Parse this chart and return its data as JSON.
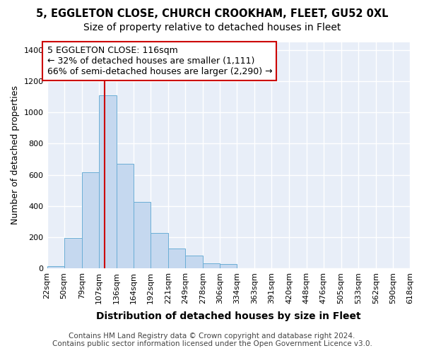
{
  "title1": "5, EGGLETON CLOSE, CHURCH CROOKHAM, FLEET, GU52 0XL",
  "title2": "Size of property relative to detached houses in Fleet",
  "xlabel": "Distribution of detached houses by size in Fleet",
  "ylabel": "Number of detached properties",
  "bar_edges": [
    22,
    50,
    79,
    107,
    136,
    164,
    192,
    221,
    249,
    278,
    306,
    334,
    363,
    391,
    420,
    448,
    476,
    505,
    533,
    562,
    590
  ],
  "bar_heights": [
    15,
    195,
    615,
    1110,
    670,
    425,
    225,
    125,
    80,
    30,
    25,
    0,
    0,
    0,
    0,
    0,
    0,
    0,
    0,
    0
  ],
  "bar_color": "#c5d8ef",
  "bar_edgecolor": "#6baed6",
  "vline_x": 116,
  "vline_color": "#cc0000",
  "annotation_text": "5 EGGLETON CLOSE: 116sqm\n← 32% of detached houses are smaller (1,111)\n66% of semi-detached houses are larger (2,290) →",
  "annotation_box_color": "#ffffff",
  "annotation_box_edgecolor": "#cc0000",
  "ylim": [
    0,
    1450
  ],
  "yticks": [
    0,
    200,
    400,
    600,
    800,
    1000,
    1200,
    1400
  ],
  "xlim_min": 0,
  "xlim_max": 618,
  "background_color": "#e8eef8",
  "grid_color": "#ffffff",
  "footer1": "Contains HM Land Registry data © Crown copyright and database right 2024.",
  "footer2": "Contains public sector information licensed under the Open Government Licence v3.0.",
  "title1_fontsize": 10.5,
  "title2_fontsize": 10,
  "xlabel_fontsize": 10,
  "ylabel_fontsize": 9,
  "tick_fontsize": 8,
  "annotation_fontsize": 9,
  "footer_fontsize": 7.5
}
